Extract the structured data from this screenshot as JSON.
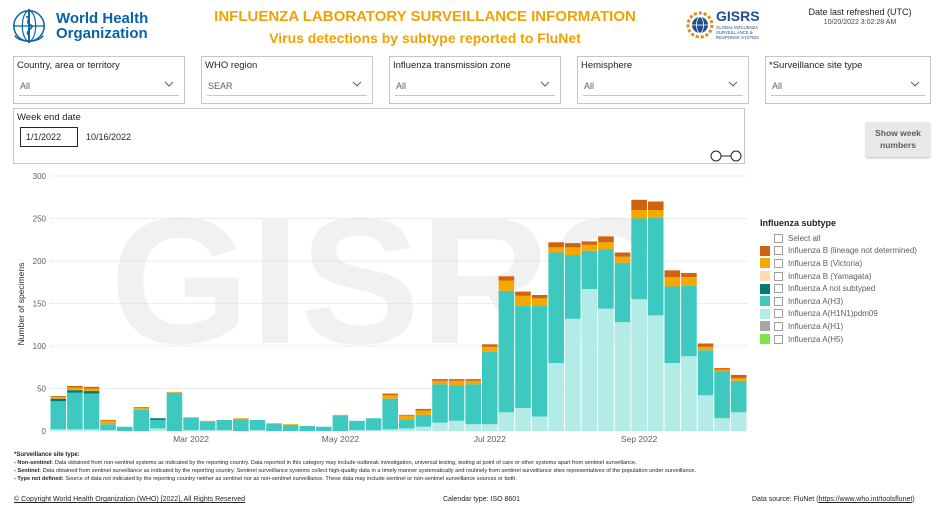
{
  "header": {
    "org_line1": "World Health",
    "org_line2": "Organization",
    "title": "INFLUENZA LABORATORY SURVEILLANCE INFORMATION",
    "subtitle": "Virus detections by subtype reported to FluNet",
    "gisrs_name": "GISRS",
    "gisrs_line1": "GLOBAL INFLUENZA",
    "gisrs_line2": "SURVEILLANCE &",
    "gisrs_line3": "RESPONSE SYSTEM",
    "refresh_label": "Date last refreshed (UTC)",
    "refresh_value": "10/20/2022 3:02:28 AM"
  },
  "filters": [
    {
      "label": "Country, area or territory",
      "value": "All"
    },
    {
      "label": "WHO region",
      "value": "SEAR"
    },
    {
      "label": "Influenza transmission zone",
      "value": "All"
    },
    {
      "label": "Hemisphere",
      "value": "All"
    },
    {
      "label": "*Surveillance site type",
      "value": "All"
    }
  ],
  "date_filter": {
    "label": "Week end date",
    "start": "1/1/2022",
    "end": "10/16/2022"
  },
  "show_week_button": {
    "line1": "Show week",
    "line2": "numbers"
  },
  "watermark": "GISRS",
  "chart_data": {
    "type": "bar",
    "stacked": true,
    "ylabel": "Number of specimens",
    "ylim": [
      0,
      300
    ],
    "yticks": [
      0,
      50,
      100,
      150,
      200,
      250,
      300
    ],
    "xticks": [
      {
        "label": "Mar 2022",
        "index": 8
      },
      {
        "label": "May 2022",
        "index": 17
      },
      {
        "label": "Jul 2022",
        "index": 26
      },
      {
        "label": "Sep 2022",
        "index": 35
      }
    ],
    "grid": true,
    "legend_position": "right",
    "categories": [
      "2022-01-02",
      "2022-01-09",
      "2022-01-16",
      "2022-01-23",
      "2022-01-30",
      "2022-02-06",
      "2022-02-13",
      "2022-02-20",
      "2022-02-27",
      "2022-03-06",
      "2022-03-13",
      "2022-03-20",
      "2022-03-27",
      "2022-04-03",
      "2022-04-10",
      "2022-04-17",
      "2022-04-24",
      "2022-05-01",
      "2022-05-08",
      "2022-05-15",
      "2022-05-22",
      "2022-05-29",
      "2022-06-05",
      "2022-06-12",
      "2022-06-19",
      "2022-06-26",
      "2022-07-03",
      "2022-07-10",
      "2022-07-17",
      "2022-07-24",
      "2022-07-31",
      "2022-08-07",
      "2022-08-14",
      "2022-08-21",
      "2022-08-28",
      "2022-09-04",
      "2022-09-11",
      "2022-09-18",
      "2022-09-25",
      "2022-10-02",
      "2022-10-09",
      "2022-10-16"
    ],
    "series": [
      {
        "name": "Influenza A(H5)",
        "color": "#7fe34b",
        "values": [
          0,
          0,
          0,
          0,
          0,
          0,
          0,
          0,
          0,
          0,
          0,
          0,
          0,
          0,
          0,
          0,
          0,
          0,
          0,
          0,
          0,
          0,
          0,
          0,
          0,
          0,
          0,
          0,
          0,
          0,
          0,
          0,
          0,
          0,
          0,
          0,
          0,
          0,
          0,
          0,
          0,
          0
        ]
      },
      {
        "name": "Influenza A(H1)",
        "color": "#a6a6a6",
        "values": [
          0,
          0,
          0,
          0,
          0,
          0,
          0,
          0,
          0,
          0,
          0,
          0,
          0,
          0,
          0,
          0,
          0,
          0,
          0,
          0,
          0,
          0,
          0,
          0,
          0,
          0,
          0,
          0,
          0,
          0,
          0,
          0,
          0,
          0,
          0,
          0,
          0,
          0,
          0,
          0,
          0,
          0
        ]
      },
      {
        "name": "Influenza A(H1N1)pdm09",
        "color": "#b3ece6",
        "values": [
          2,
          2,
          2,
          1,
          0,
          0,
          3,
          0,
          1,
          1,
          1,
          0,
          1,
          0,
          0,
          0,
          0,
          0,
          1,
          1,
          2,
          3,
          5,
          10,
          12,
          8,
          8,
          22,
          27,
          17,
          80,
          132,
          167,
          144,
          128,
          155,
          136,
          80,
          88,
          42,
          15,
          22
        ]
      },
      {
        "name": "Influenza A(H3)",
        "color": "#3ec9c0",
        "values": [
          33,
          43,
          42,
          7,
          5,
          25,
          10,
          45,
          15,
          10,
          12,
          14,
          12,
          9,
          7,
          6,
          5,
          18,
          11,
          14,
          36,
          11,
          14,
          45,
          42,
          47,
          85,
          143,
          120,
          130,
          130,
          75,
          45,
          70,
          70,
          95,
          115,
          90,
          83,
          53,
          55,
          37
        ]
      },
      {
        "name": "Influenza A not subtyped",
        "color": "#007a75",
        "values": [
          3,
          3,
          3,
          0,
          0,
          0,
          2,
          0,
          0,
          0,
          0,
          0,
          0,
          0,
          0,
          0,
          0,
          0,
          0,
          0,
          0,
          0,
          0,
          0,
          0,
          0,
          0,
          0,
          0,
          0,
          0,
          0,
          0,
          0,
          0,
          0,
          0,
          0,
          0,
          0,
          0,
          0
        ]
      },
      {
        "name": "Influenza B (Yamagata)",
        "color": "#ffddb0",
        "values": [
          0,
          0,
          0,
          0,
          0,
          0,
          0,
          0,
          0,
          0,
          0,
          0,
          0,
          0,
          0,
          0,
          0,
          0,
          0,
          0,
          0,
          0,
          0,
          0,
          0,
          0,
          0,
          0,
          0,
          0,
          0,
          0,
          0,
          0,
          0,
          0,
          0,
          0,
          0,
          0,
          0,
          0
        ]
      },
      {
        "name": "Influenza B (Victoria)",
        "color": "#f5a800",
        "values": [
          2,
          3,
          3,
          4,
          0,
          2,
          0,
          1,
          0,
          1,
          0,
          1,
          0,
          0,
          1,
          0,
          0,
          1,
          0,
          0,
          4,
          4,
          5,
          4,
          5,
          4,
          6,
          12,
          12,
          9,
          6,
          9,
          7,
          8,
          7,
          10,
          9,
          11,
          10,
          4,
          2,
          3
        ]
      },
      {
        "name": "Influenza B (lineage not determined)",
        "color": "#d0640e",
        "values": [
          1,
          2,
          2,
          1,
          0,
          1,
          0,
          0,
          0,
          0,
          0,
          0,
          0,
          0,
          0,
          0,
          0,
          0,
          0,
          0,
          2,
          1,
          2,
          2,
          2,
          2,
          3,
          5,
          5,
          4,
          6,
          5,
          4,
          7,
          5,
          12,
          10,
          8,
          5,
          4,
          2,
          4
        ]
      }
    ]
  },
  "legend": {
    "title": "Influenza subtype",
    "select_all": "Select all",
    "items": [
      {
        "name": "Influenza B (lineage not determined)",
        "color": "#d0640e"
      },
      {
        "name": "Influenza B (Victoria)",
        "color": "#f5a800"
      },
      {
        "name": "Influenza B (Yamagata)",
        "color": "#ffddb0"
      },
      {
        "name": "Influenza A not subtyped",
        "color": "#007a75"
      },
      {
        "name": "Influenza A(H3)",
        "color": "#3ec9c0"
      },
      {
        "name": "Influenza A(H1N1)pdm09",
        "color": "#b3ece6"
      },
      {
        "name": "Influenza A(H1)",
        "color": "#a6a6a6"
      },
      {
        "name": "Influenza A(H5)",
        "color": "#7fe34b"
      }
    ]
  },
  "notes": {
    "heading": "*Surveillance site type:",
    "non_sentinel_label": "- Non-sentinel:",
    "non_sentinel_text": "Data obtained from non-sentinel systems as indicated by the reporting country. Data reported in this category may include outbreak investigation, universal testing, testing at point of care or other systems apart from sentinel surveillance.",
    "sentinel_label": "- Sentinel:",
    "sentinel_text": "Data obtained from sentinel surveillance as indicated by the reporting country. Sentinel surveillance systems collect high-quality data in a timely manner systematically and routinely from sentinel surveillance sites representatives of the population under surveillance.",
    "not_defined_label": "- Type not defined:",
    "not_defined_text": "Source of data not indicated by the reporting country neither as sentinel nor as non-sentinel surveillance. These data may include sentinel or non-sentinel surveillance sources or both."
  },
  "footer": {
    "copyright": "© Copyright World Health Organization (WHO) [2022], All Rights Reserved",
    "calendar": "Calendar type: ISO 8601",
    "source_label": "Data source: FluNet (",
    "source_link": "https://www.who.int/toolsflunet",
    "source_close": ")"
  }
}
